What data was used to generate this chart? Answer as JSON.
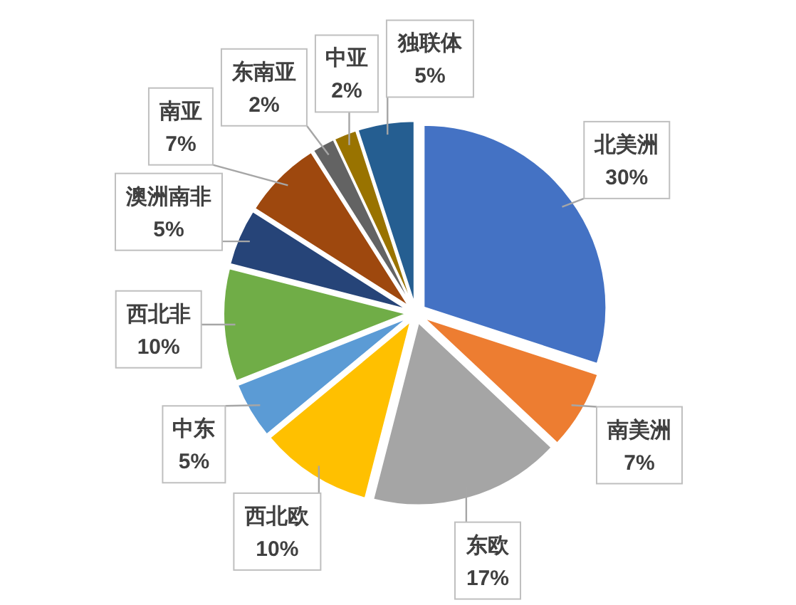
{
  "chart_data": {
    "type": "pie",
    "categories": [
      "北美洲",
      "南美洲",
      "东欧",
      "西北欧",
      "中东",
      "西北非",
      "澳洲南非",
      "南亚",
      "东南亚",
      "中亚",
      "独联体"
    ],
    "values": [
      30,
      7,
      17,
      10,
      5,
      10,
      5,
      7,
      2,
      2,
      5
    ],
    "value_labels": [
      "30%",
      "7%",
      "17%",
      "10%",
      "5%",
      "10%",
      "5%",
      "7%",
      "2%",
      "2%",
      "5%"
    ],
    "colors": [
      "#4472c4",
      "#ed7d31",
      "#a5a5a5",
      "#ffc000",
      "#5b9bd5",
      "#70ad47",
      "#264478",
      "#9e480e",
      "#636363",
      "#997300",
      "#255e91"
    ]
  }
}
